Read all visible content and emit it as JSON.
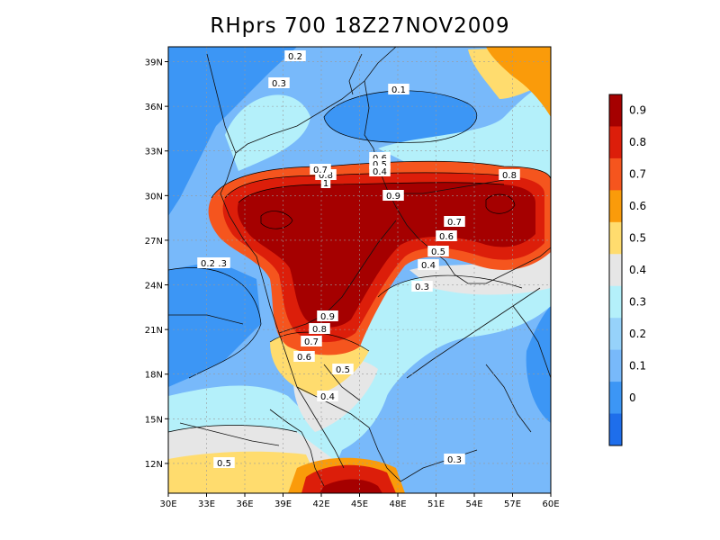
{
  "title": "RHprs 700 18Z27NOV2009",
  "map": {
    "lon_range": [
      30,
      60
    ],
    "lat_range": [
      10,
      40
    ],
    "x_ticks": [
      "30E",
      "33E",
      "36E",
      "39E",
      "42E",
      "45E",
      "48E",
      "51E",
      "54E",
      "57E",
      "60E"
    ],
    "y_ticks": [
      "12N",
      "15N",
      "18N",
      "21N",
      "24N",
      "27N",
      "30N",
      "33N",
      "36N",
      "39N"
    ],
    "contour_labels": [
      "0.2",
      "0.3",
      "0.1",
      "0.3",
      "0.4",
      "0.5",
      "0.6",
      "0.7",
      "0.8",
      "0.9",
      "1",
      "0.8",
      "0.7",
      "0.6",
      "0.5",
      "0.4",
      "0.3",
      "0.2",
      "0.9",
      "0.8",
      "0.7",
      "0.6",
      "0.5",
      "0.4",
      "0.5",
      "0.3"
    ]
  },
  "colorbar": {
    "labels": [
      "0.9",
      "0.8",
      "0.7",
      "0.6",
      "0.5",
      "0.4",
      "0.3",
      "0.2",
      "0.1",
      "0"
    ],
    "colors": [
      "#a50000",
      "#dc1e0a",
      "#f5551e",
      "#fa9b0a",
      "#ffdc6e",
      "#e6e6e6",
      "#b4f0fa",
      "#96d2fa",
      "#78b9fa",
      "#3c96f5",
      "#1e6eeb"
    ]
  }
}
